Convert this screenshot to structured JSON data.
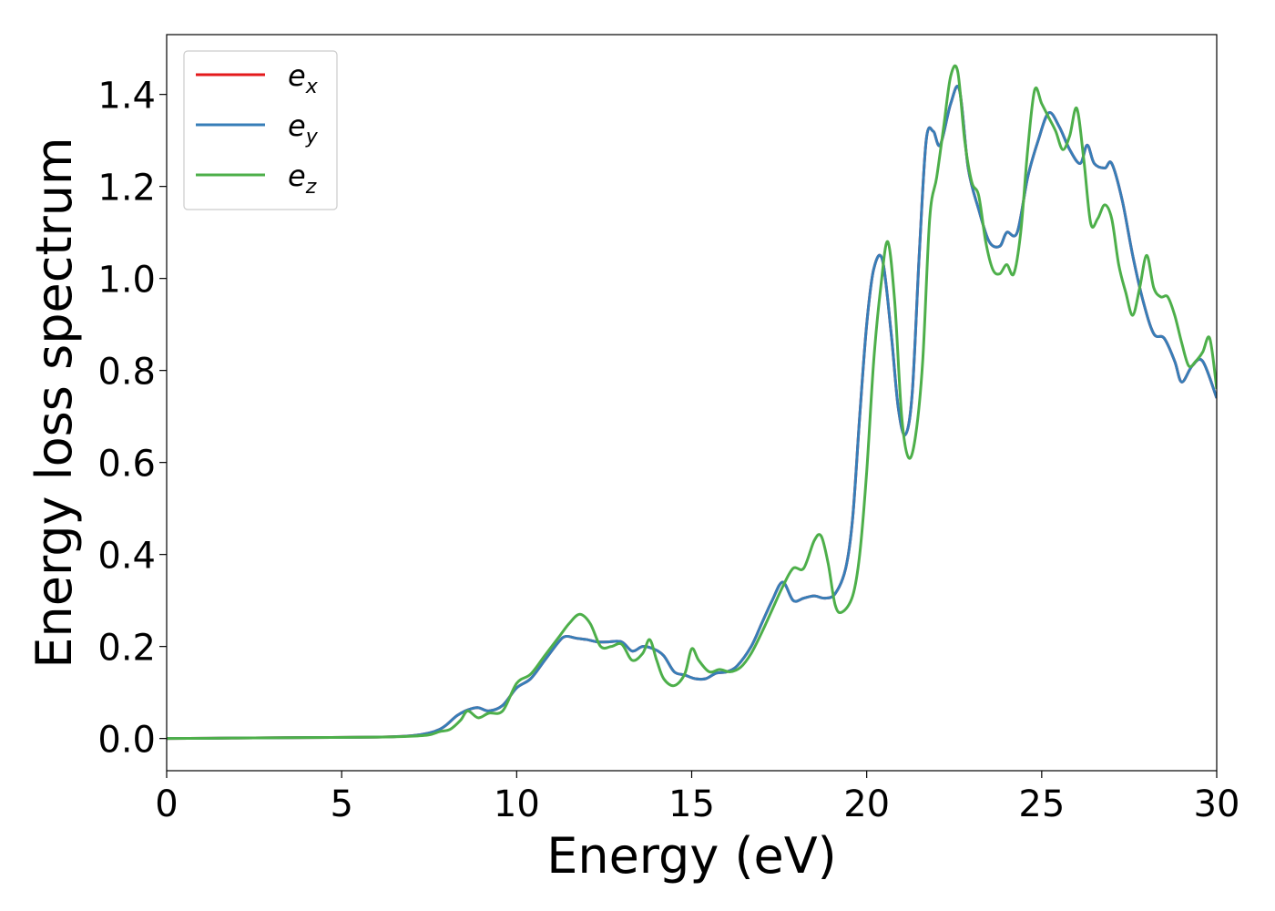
{
  "chart_data": {
    "type": "line",
    "title": "",
    "xlabel": "Energy (eV)",
    "ylabel": "Energy loss spectrum",
    "xlim": [
      0,
      30
    ],
    "ylim": [
      -0.07,
      1.53
    ],
    "xticks": [
      0,
      5,
      10,
      15,
      20,
      25,
      30
    ],
    "xtick_labels": [
      "0",
      "5",
      "10",
      "15",
      "20",
      "25",
      "30"
    ],
    "yticks": [
      0.0,
      0.2,
      0.4,
      0.6,
      0.8,
      1.0,
      1.2,
      1.4
    ],
    "ytick_labels": [
      "0.0",
      "0.2",
      "0.4",
      "0.6",
      "0.8",
      "1.0",
      "1.2",
      "1.4"
    ],
    "grid": false,
    "legend_position": "top-left",
    "series": [
      {
        "name": "e_x",
        "legend_base": "e",
        "legend_sub": "x",
        "color": "#e41a1c",
        "x": [
          0,
          2,
          4,
          6,
          7,
          7.5,
          7.8,
          8.0,
          8.3,
          8.6,
          8.9,
          9.2,
          9.6,
          10.0,
          10.4,
          10.8,
          11.2,
          11.4,
          11.7,
          12.0,
          12.3,
          12.6,
          13.0,
          13.3,
          13.6,
          13.9,
          14.2,
          14.5,
          14.8,
          15.1,
          15.4,
          15.7,
          16.0,
          16.3,
          16.7,
          17.0,
          17.3,
          17.6,
          17.9,
          18.2,
          18.5,
          18.8,
          19.1,
          19.4,
          19.6,
          19.8,
          20.0,
          20.2,
          20.45,
          20.7,
          20.9,
          21.1,
          21.3,
          21.5,
          21.7,
          21.9,
          22.1,
          22.4,
          22.65,
          22.9,
          23.2,
          23.5,
          23.8,
          24.0,
          24.3,
          24.6,
          24.9,
          25.2,
          25.5,
          25.8,
          26.1,
          26.3,
          26.5,
          26.8,
          27.0,
          27.3,
          27.6,
          27.9,
          28.2,
          28.5,
          28.8,
          29.0,
          29.3,
          29.6,
          30.0
        ],
        "y": [
          0.0,
          0.001,
          0.002,
          0.003,
          0.006,
          0.012,
          0.02,
          0.03,
          0.05,
          0.062,
          0.067,
          0.06,
          0.072,
          0.11,
          0.13,
          0.17,
          0.21,
          0.222,
          0.218,
          0.215,
          0.21,
          0.21,
          0.21,
          0.19,
          0.2,
          0.195,
          0.18,
          0.145,
          0.138,
          0.13,
          0.13,
          0.142,
          0.145,
          0.158,
          0.2,
          0.25,
          0.3,
          0.34,
          0.3,
          0.305,
          0.31,
          0.305,
          0.315,
          0.37,
          0.48,
          0.7,
          0.9,
          1.02,
          1.04,
          0.88,
          0.72,
          0.66,
          0.75,
          1.05,
          1.3,
          1.32,
          1.29,
          1.38,
          1.41,
          1.24,
          1.15,
          1.08,
          1.07,
          1.1,
          1.1,
          1.22,
          1.3,
          1.36,
          1.33,
          1.28,
          1.25,
          1.29,
          1.25,
          1.24,
          1.25,
          1.17,
          1.05,
          0.95,
          0.88,
          0.87,
          0.82,
          0.775,
          0.81,
          0.82,
          0.74
        ]
      },
      {
        "name": "e_y",
        "legend_base": "e",
        "legend_sub": "y",
        "color": "#377eb8",
        "x": [
          0,
          2,
          4,
          6,
          7,
          7.5,
          7.8,
          8.0,
          8.3,
          8.6,
          8.9,
          9.2,
          9.6,
          10.0,
          10.4,
          10.8,
          11.2,
          11.4,
          11.7,
          12.0,
          12.3,
          12.6,
          13.0,
          13.3,
          13.6,
          13.9,
          14.2,
          14.5,
          14.8,
          15.1,
          15.4,
          15.7,
          16.0,
          16.3,
          16.7,
          17.0,
          17.3,
          17.6,
          17.9,
          18.2,
          18.5,
          18.8,
          19.1,
          19.4,
          19.6,
          19.8,
          20.0,
          20.2,
          20.45,
          20.7,
          20.9,
          21.1,
          21.3,
          21.5,
          21.7,
          21.9,
          22.1,
          22.4,
          22.65,
          22.9,
          23.2,
          23.5,
          23.8,
          24.0,
          24.3,
          24.6,
          24.9,
          25.2,
          25.5,
          25.8,
          26.1,
          26.3,
          26.5,
          26.8,
          27.0,
          27.3,
          27.6,
          27.9,
          28.2,
          28.5,
          28.8,
          29.0,
          29.3,
          29.6,
          30.0
        ],
        "y": [
          0.0,
          0.001,
          0.002,
          0.003,
          0.006,
          0.012,
          0.02,
          0.03,
          0.05,
          0.062,
          0.067,
          0.06,
          0.072,
          0.11,
          0.13,
          0.17,
          0.21,
          0.222,
          0.218,
          0.215,
          0.21,
          0.21,
          0.21,
          0.19,
          0.2,
          0.195,
          0.18,
          0.145,
          0.138,
          0.13,
          0.13,
          0.142,
          0.145,
          0.158,
          0.2,
          0.25,
          0.3,
          0.34,
          0.3,
          0.305,
          0.31,
          0.305,
          0.315,
          0.37,
          0.48,
          0.7,
          0.9,
          1.02,
          1.04,
          0.88,
          0.72,
          0.66,
          0.75,
          1.05,
          1.3,
          1.32,
          1.29,
          1.38,
          1.41,
          1.24,
          1.15,
          1.08,
          1.07,
          1.1,
          1.1,
          1.22,
          1.3,
          1.36,
          1.33,
          1.28,
          1.25,
          1.29,
          1.25,
          1.24,
          1.25,
          1.17,
          1.05,
          0.95,
          0.88,
          0.87,
          0.82,
          0.775,
          0.81,
          0.82,
          0.74
        ]
      },
      {
        "name": "e_z",
        "legend_base": "e",
        "legend_sub": "z",
        "color": "#4daf4a",
        "x": [
          0,
          2,
          4,
          6,
          7,
          7.5,
          7.8,
          8.1,
          8.4,
          8.6,
          8.9,
          9.2,
          9.6,
          10.0,
          10.4,
          10.8,
          11.2,
          11.5,
          11.8,
          12.1,
          12.4,
          12.7,
          13.0,
          13.3,
          13.6,
          13.8,
          14.0,
          14.2,
          14.5,
          14.8,
          15.0,
          15.2,
          15.5,
          15.8,
          16.1,
          16.4,
          16.7,
          17.0,
          17.3,
          17.6,
          17.9,
          18.2,
          18.5,
          18.7,
          18.9,
          19.1,
          19.3,
          19.6,
          19.8,
          20.0,
          20.2,
          20.4,
          20.6,
          20.8,
          21.0,
          21.2,
          21.4,
          21.6,
          21.8,
          22.0,
          22.2,
          22.4,
          22.6,
          22.8,
          23.0,
          23.2,
          23.4,
          23.6,
          23.8,
          24.0,
          24.2,
          24.4,
          24.6,
          24.8,
          25.0,
          25.2,
          25.4,
          25.6,
          25.8,
          26.0,
          26.2,
          26.4,
          26.6,
          26.8,
          27.0,
          27.2,
          27.4,
          27.6,
          27.8,
          28.0,
          28.2,
          28.4,
          28.6,
          28.8,
          29.0,
          29.2,
          29.4,
          29.6,
          29.8,
          30.0
        ],
        "y": [
          0.0,
          0.001,
          0.002,
          0.003,
          0.005,
          0.008,
          0.015,
          0.02,
          0.04,
          0.06,
          0.045,
          0.055,
          0.06,
          0.12,
          0.14,
          0.18,
          0.22,
          0.25,
          0.27,
          0.25,
          0.2,
          0.2,
          0.205,
          0.17,
          0.185,
          0.215,
          0.17,
          0.13,
          0.115,
          0.14,
          0.195,
          0.17,
          0.145,
          0.15,
          0.145,
          0.155,
          0.185,
          0.23,
          0.28,
          0.33,
          0.37,
          0.37,
          0.43,
          0.44,
          0.38,
          0.29,
          0.275,
          0.31,
          0.4,
          0.58,
          0.82,
          0.98,
          1.08,
          0.95,
          0.7,
          0.61,
          0.66,
          0.82,
          1.13,
          1.22,
          1.33,
          1.44,
          1.45,
          1.3,
          1.21,
          1.18,
          1.08,
          1.02,
          1.01,
          1.03,
          1.01,
          1.1,
          1.28,
          1.41,
          1.38,
          1.35,
          1.32,
          1.28,
          1.31,
          1.37,
          1.26,
          1.12,
          1.13,
          1.16,
          1.13,
          1.03,
          0.97,
          0.92,
          0.98,
          1.05,
          0.98,
          0.96,
          0.96,
          0.92,
          0.86,
          0.81,
          0.82,
          0.84,
          0.87,
          0.76
        ]
      }
    ]
  }
}
